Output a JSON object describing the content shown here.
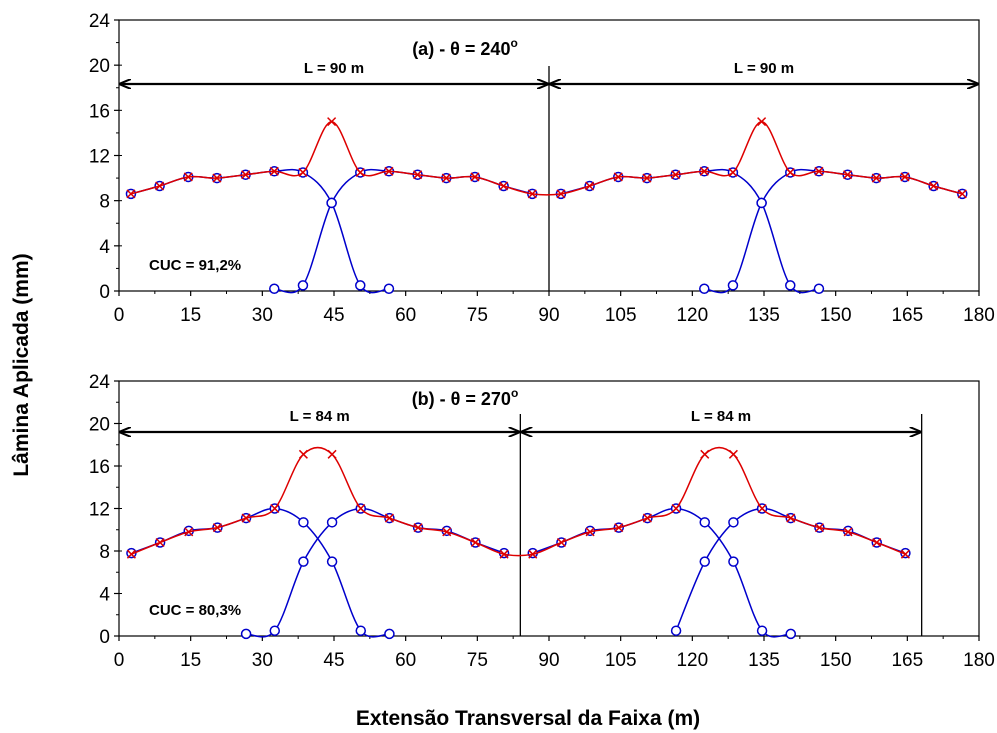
{
  "chart_data": {
    "type": "line",
    "xlabel": "Extensão Transversal da Faixa (m)",
    "ylabel": "Lâmina Aplicada (mm)",
    "series_styles": [
      {
        "color": "#0000cc",
        "marker": "circle"
      },
      {
        "color": "#dd0000",
        "marker": "x"
      }
    ],
    "panels": [
      {
        "title": "(a) - θ = 240",
        "title_sup": "o",
        "xlim": [
          0,
          180
        ],
        "ylim": [
          0,
          24
        ],
        "xticks": [
          "0",
          "15",
          "30",
          "45",
          "60",
          "75",
          "90",
          "105",
          "120",
          "135",
          "150",
          "165",
          "180"
        ],
        "yticks": [
          "0",
          "4",
          "8",
          "12",
          "16",
          "20",
          "24"
        ],
        "cuc_label": "CUC = 91,2%",
        "spans": [
          {
            "label": "L = 90 m",
            "x_start": 0,
            "x_end": 90
          },
          {
            "label": "L = 90 m",
            "x_start": 90,
            "x_end": 180
          }
        ],
        "divider_x": [
          90
        ],
        "series": [
          {
            "kind": "individual",
            "points": [
              [
                2.5,
                8.6
              ],
              [
                8.5,
                9.3
              ],
              [
                14.5,
                10.1
              ],
              [
                20.5,
                10.0
              ],
              [
                26.5,
                10.3
              ],
              [
                32.5,
                10.6
              ],
              [
                38.5,
                10.5
              ],
              [
                44.5,
                7.8
              ],
              [
                50.5,
                0.5
              ],
              [
                56.5,
                0.2
              ]
            ]
          },
          {
            "kind": "individual",
            "points": [
              [
                32.5,
                0.2
              ],
              [
                38.5,
                0.5
              ],
              [
                44.5,
                7.8
              ],
              [
                50.5,
                10.5
              ],
              [
                56.5,
                10.6
              ],
              [
                62.5,
                10.3
              ],
              [
                68.5,
                10.0
              ],
              [
                74.5,
                10.1
              ],
              [
                80.5,
                9.3
              ],
              [
                86.5,
                8.6
              ]
            ]
          },
          {
            "kind": "individual",
            "points": [
              [
                92.5,
                8.6
              ],
              [
                98.5,
                9.3
              ],
              [
                104.5,
                10.1
              ],
              [
                110.5,
                10.0
              ],
              [
                116.5,
                10.3
              ],
              [
                122.5,
                10.6
              ],
              [
                128.5,
                10.5
              ],
              [
                134.5,
                7.8
              ],
              [
                140.5,
                0.5
              ],
              [
                146.5,
                0.2
              ]
            ]
          },
          {
            "kind": "individual",
            "points": [
              [
                122.5,
                0.2
              ],
              [
                128.5,
                0.5
              ],
              [
                134.5,
                7.8
              ],
              [
                140.5,
                10.5
              ],
              [
                146.5,
                10.6
              ],
              [
                152.5,
                10.3
              ],
              [
                158.5,
                10.0
              ],
              [
                164.5,
                10.1
              ],
              [
                170.5,
                9.3
              ],
              [
                176.5,
                8.6
              ]
            ]
          },
          {
            "kind": "combined",
            "points": [
              [
                2.5,
                8.6
              ],
              [
                8.5,
                9.3
              ],
              [
                14.5,
                10.1
              ],
              [
                20.5,
                10.0
              ],
              [
                26.5,
                10.3
              ],
              [
                32.5,
                10.6
              ],
              [
                38.5,
                10.5
              ],
              [
                44.5,
                15.0
              ],
              [
                50.5,
                10.5
              ],
              [
                56.5,
                10.6
              ],
              [
                62.5,
                10.3
              ],
              [
                68.5,
                10.0
              ],
              [
                74.5,
                10.1
              ],
              [
                80.5,
                9.3
              ],
              [
                86.5,
                8.6
              ],
              [
                92.5,
                8.6
              ],
              [
                98.5,
                9.3
              ],
              [
                104.5,
                10.1
              ],
              [
                110.5,
                10.0
              ],
              [
                116.5,
                10.3
              ],
              [
                122.5,
                10.6
              ],
              [
                128.5,
                10.5
              ],
              [
                134.5,
                15.0
              ],
              [
                140.5,
                10.5
              ],
              [
                146.5,
                10.6
              ],
              [
                152.5,
                10.3
              ],
              [
                158.5,
                10.0
              ],
              [
                164.5,
                10.1
              ],
              [
                170.5,
                9.3
              ],
              [
                176.5,
                8.6
              ]
            ]
          }
        ]
      },
      {
        "title": "(b) - θ = 270",
        "title_sup": "o",
        "xlim": [
          0,
          180
        ],
        "ylim": [
          0,
          24
        ],
        "xticks": [
          "0",
          "15",
          "30",
          "45",
          "60",
          "75",
          "90",
          "105",
          "120",
          "135",
          "150",
          "165",
          "180"
        ],
        "yticks": [
          "0",
          "4",
          "8",
          "12",
          "16",
          "20",
          "24"
        ],
        "cuc_label": "CUC = 80,3%",
        "spans": [
          {
            "label": "L = 84 m",
            "x_start": 0,
            "x_end": 84
          },
          {
            "label": "L = 84 m",
            "x_start": 84,
            "x_end": 168
          }
        ],
        "divider_x": [
          84,
          168
        ],
        "series": [
          {
            "kind": "individual",
            "points": [
              [
                2.6,
                7.8
              ],
              [
                8.6,
                8.8
              ],
              [
                14.6,
                9.9
              ],
              [
                20.6,
                10.2
              ],
              [
                26.6,
                11.1
              ],
              [
                32.6,
                12.0
              ],
              [
                38.6,
                10.7
              ],
              [
                44.6,
                7.0
              ],
              [
                50.6,
                0.5
              ],
              [
                56.6,
                0.2
              ]
            ]
          },
          {
            "kind": "individual",
            "points": [
              [
                26.6,
                0.2
              ],
              [
                32.6,
                0.5
              ],
              [
                38.6,
                7.0
              ],
              [
                44.6,
                10.7
              ],
              [
                50.6,
                12.0
              ],
              [
                56.6,
                11.1
              ],
              [
                62.6,
                10.2
              ],
              [
                68.6,
                9.9
              ],
              [
                74.6,
                8.8
              ],
              [
                80.6,
                7.8
              ]
            ]
          },
          {
            "kind": "individual",
            "points": [
              [
                86.6,
                7.8
              ],
              [
                92.6,
                8.8
              ],
              [
                98.6,
                9.9
              ],
              [
                104.6,
                10.2
              ],
              [
                110.6,
                11.1
              ],
              [
                116.6,
                12.0
              ],
              [
                122.6,
                10.7
              ],
              [
                128.6,
                7.0
              ],
              [
                134.6,
                0.5
              ],
              [
                140.6,
                0.2
              ]
            ]
          },
          {
            "kind": "individual",
            "points": [
              [
                116.6,
                0.5
              ],
              [
                122.6,
                7.0
              ],
              [
                128.6,
                10.7
              ],
              [
                134.6,
                12.0
              ],
              [
                140.6,
                11.1
              ],
              [
                146.6,
                10.2
              ],
              [
                152.6,
                9.9
              ],
              [
                158.6,
                8.8
              ],
              [
                164.6,
                7.8
              ]
            ]
          },
          {
            "kind": "combined",
            "points": [
              [
                2.6,
                7.7
              ],
              [
                8.6,
                8.8
              ],
              [
                14.6,
                9.8
              ],
              [
                20.6,
                10.2
              ],
              [
                26.6,
                11.1
              ],
              [
                32.6,
                12.0
              ],
              [
                38.6,
                17.1
              ],
              [
                44.6,
                17.1
              ],
              [
                50.6,
                12.0
              ],
              [
                56.6,
                11.1
              ],
              [
                62.6,
                10.2
              ],
              [
                68.6,
                9.8
              ],
              [
                74.6,
                8.8
              ],
              [
                80.6,
                7.7
              ],
              [
                86.6,
                7.7
              ],
              [
                92.6,
                8.8
              ],
              [
                98.6,
                9.8
              ],
              [
                104.6,
                10.2
              ],
              [
                110.6,
                11.1
              ],
              [
                116.6,
                12.0
              ],
              [
                122.6,
                17.1
              ],
              [
                128.6,
                17.1
              ],
              [
                134.6,
                12.0
              ],
              [
                140.6,
                11.1
              ],
              [
                146.6,
                10.2
              ],
              [
                152.6,
                9.8
              ],
              [
                158.6,
                8.8
              ],
              [
                164.6,
                7.7
              ]
            ]
          }
        ]
      }
    ]
  }
}
